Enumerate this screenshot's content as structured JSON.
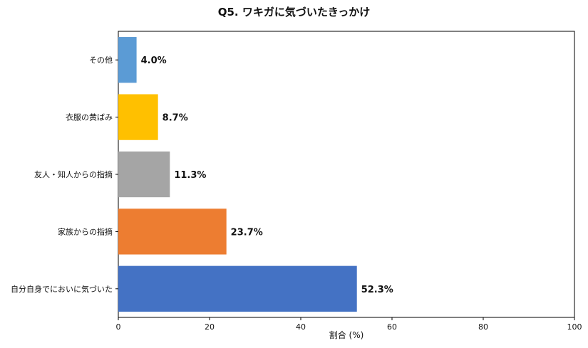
{
  "chart_data": {
    "type": "bar",
    "orientation": "horizontal",
    "title": "Q5. ワキガに気づいたきっかけ",
    "xlabel": "割合 (%)",
    "ylabel": "",
    "xlim": [
      0,
      100
    ],
    "x_ticks": [
      "0",
      "20",
      "40",
      "60",
      "80",
      "100"
    ],
    "grid": false,
    "categories": [
      "その他",
      "衣服の黄ばみ",
      "友人・知人からの指摘",
      "家族からの指摘",
      "自分自身でにおいに気づいた"
    ],
    "values": [
      4.0,
      8.7,
      11.3,
      23.7,
      52.3
    ],
    "value_labels": [
      "4.0%",
      "8.7%",
      "11.3%",
      "23.7%",
      "52.3%"
    ],
    "colors": [
      "#5b9bd5",
      "#ffc000",
      "#a5a5a5",
      "#ed7d31",
      "#4472c4"
    ]
  }
}
